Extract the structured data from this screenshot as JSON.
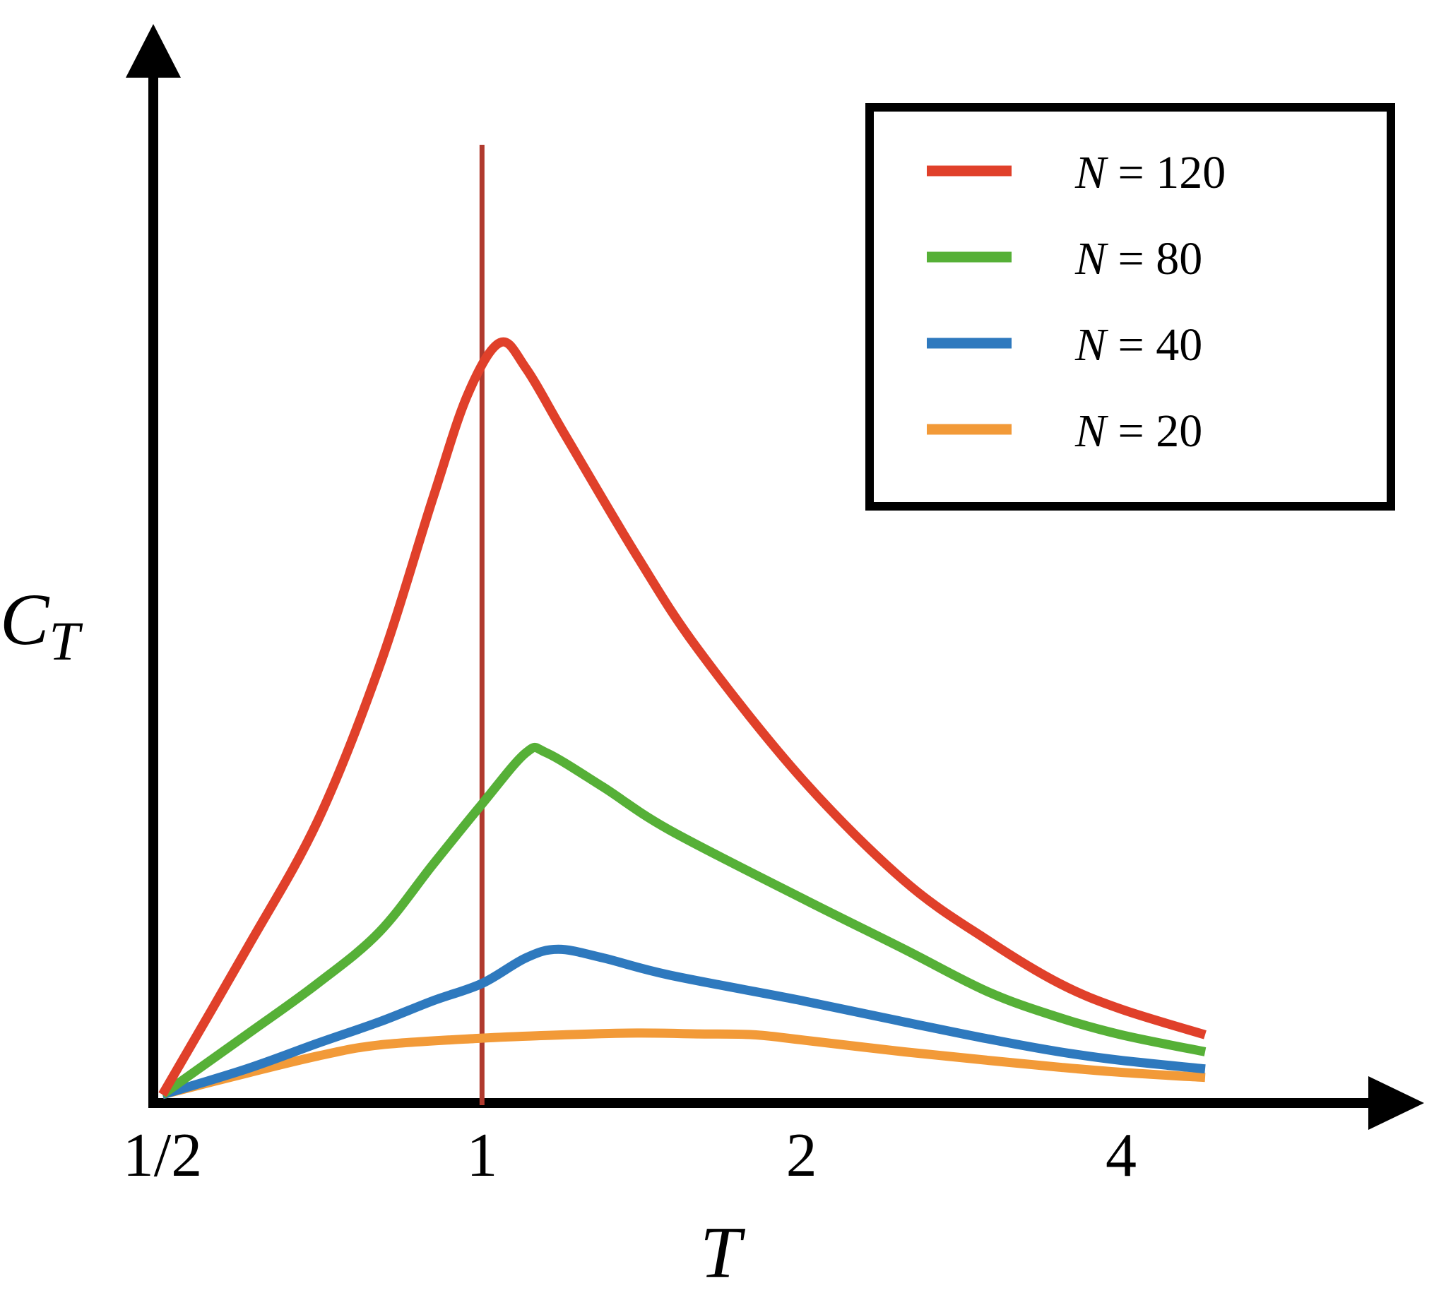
{
  "chart_data": {
    "type": "line",
    "title": "",
    "xlabel": "T",
    "ylabel": "C",
    "ylabel_sub": "T",
    "x_scale": "log",
    "xlim": [
      0.5,
      4.8
    ],
    "ylim": [
      0,
      1.0
    ],
    "xticks": [
      0.5,
      1,
      2,
      4
    ],
    "xtick_labels": [
      "1/2",
      "1",
      "2",
      "4"
    ],
    "grid": false,
    "legend_position": "top-right",
    "reference_line": {
      "x": 1,
      "color": "#b03a2e"
    },
    "series": [
      {
        "name": "N = 120",
        "legend_var": "N",
        "legend_value": "= 120",
        "color": "#e0402a",
        "points": [
          [
            0.5,
            0
          ],
          [
            0.6,
            0.17
          ],
          [
            0.7,
            0.32
          ],
          [
            0.8,
            0.5
          ],
          [
            0.9,
            0.7
          ],
          [
            0.97,
            0.82
          ],
          [
            1.04,
            0.88
          ],
          [
            1.1,
            0.85
          ],
          [
            1.2,
            0.77
          ],
          [
            1.4,
            0.63
          ],
          [
            1.6,
            0.52
          ],
          [
            2.0,
            0.37
          ],
          [
            2.5,
            0.25
          ],
          [
            3.0,
            0.18
          ],
          [
            3.5,
            0.13
          ],
          [
            4.0,
            0.1
          ],
          [
            4.8,
            0.07
          ]
        ]
      },
      {
        "name": "N = 80",
        "legend_var": "N",
        "legend_value": "= 80",
        "color": "#56b037",
        "points": [
          [
            0.5,
            0
          ],
          [
            0.6,
            0.07
          ],
          [
            0.7,
            0.13
          ],
          [
            0.8,
            0.19
          ],
          [
            0.9,
            0.27
          ],
          [
            1.0,
            0.34
          ],
          [
            1.1,
            0.4
          ],
          [
            1.15,
            0.4
          ],
          [
            1.3,
            0.36
          ],
          [
            1.5,
            0.31
          ],
          [
            2.0,
            0.23
          ],
          [
            2.5,
            0.17
          ],
          [
            3.0,
            0.12
          ],
          [
            3.5,
            0.09
          ],
          [
            4.0,
            0.07
          ],
          [
            4.8,
            0.05
          ]
        ]
      },
      {
        "name": "N = 40",
        "legend_var": "N",
        "legend_value": "= 40",
        "color": "#2e79be",
        "points": [
          [
            0.5,
            0
          ],
          [
            0.6,
            0.03
          ],
          [
            0.7,
            0.06
          ],
          [
            0.8,
            0.085
          ],
          [
            0.9,
            0.11
          ],
          [
            1.0,
            0.13
          ],
          [
            1.1,
            0.16
          ],
          [
            1.18,
            0.17
          ],
          [
            1.3,
            0.16
          ],
          [
            1.5,
            0.14
          ],
          [
            2.0,
            0.11
          ],
          [
            2.5,
            0.085
          ],
          [
            3.0,
            0.065
          ],
          [
            3.5,
            0.05
          ],
          [
            4.0,
            0.04
          ],
          [
            4.8,
            0.03
          ]
        ]
      },
      {
        "name": "N = 20",
        "legend_var": "N",
        "legend_value": "= 20",
        "color": "#f29a38",
        "points": [
          [
            0.5,
            0
          ],
          [
            0.6,
            0.025
          ],
          [
            0.7,
            0.045
          ],
          [
            0.8,
            0.058
          ],
          [
            1.0,
            0.066
          ],
          [
            1.2,
            0.07
          ],
          [
            1.4,
            0.072
          ],
          [
            1.6,
            0.071
          ],
          [
            1.8,
            0.07
          ],
          [
            2.0,
            0.064
          ],
          [
            2.5,
            0.05
          ],
          [
            3.0,
            0.04
          ],
          [
            3.5,
            0.032
          ],
          [
            4.0,
            0.026
          ],
          [
            4.8,
            0.02
          ]
        ]
      }
    ]
  }
}
